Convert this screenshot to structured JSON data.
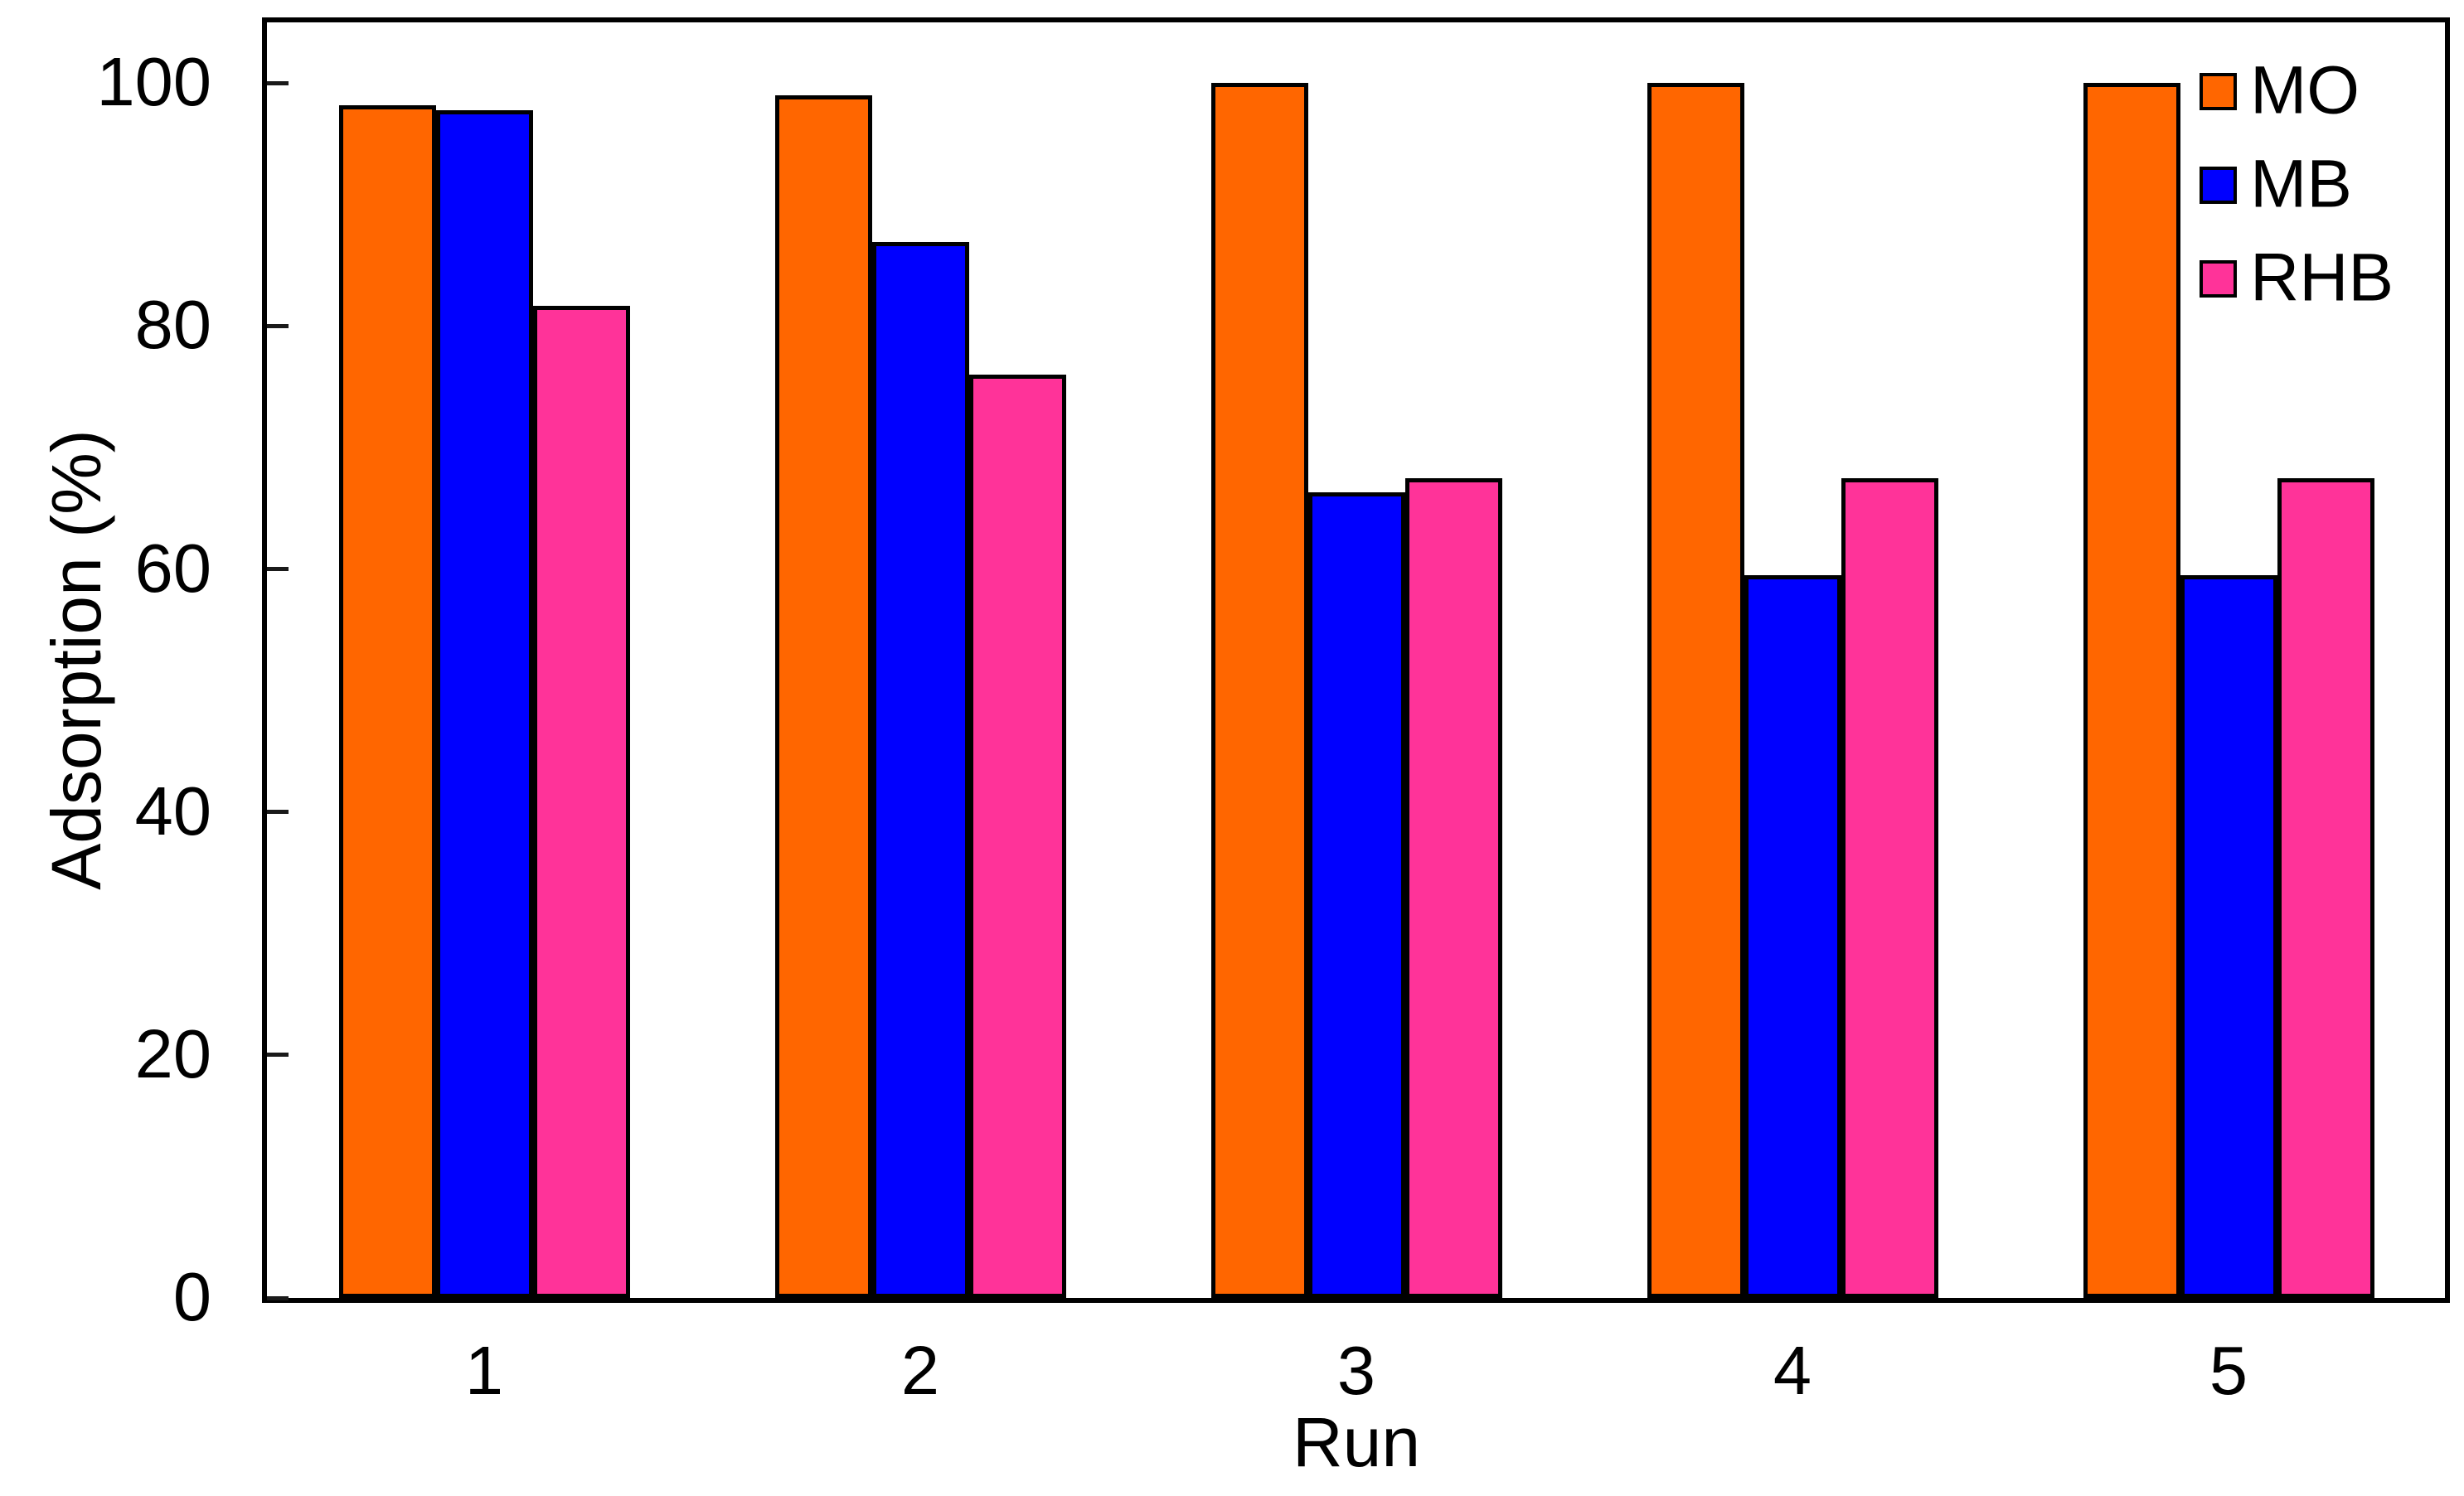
{
  "chart_data": {
    "type": "bar",
    "title": "",
    "xlabel": "Run",
    "ylabel": "Adsorption (%)",
    "categories": [
      "1",
      "2",
      "3",
      "4",
      "5"
    ],
    "series": [
      {
        "name": "MO",
        "color": "#FF6600",
        "values": [
          98.2,
          99.0,
          100.0,
          100.0,
          100.0
        ]
      },
      {
        "name": "MB",
        "color": "#0000FF",
        "values": [
          97.8,
          86.9,
          66.3,
          59.5,
          59.5
        ]
      },
      {
        "name": "RHB",
        "color": "#FF3399",
        "values": [
          81.7,
          76.0,
          67.5,
          67.5,
          67.5
        ]
      }
    ],
    "ylim": [
      0,
      105
    ],
    "yticks": [
      0,
      20,
      40,
      60,
      80,
      100
    ],
    "grid": false,
    "legend_position": "top-right",
    "bar_edge_color": "#000000",
    "axis_color": "#000000",
    "background_color": "#FFFFFF"
  }
}
